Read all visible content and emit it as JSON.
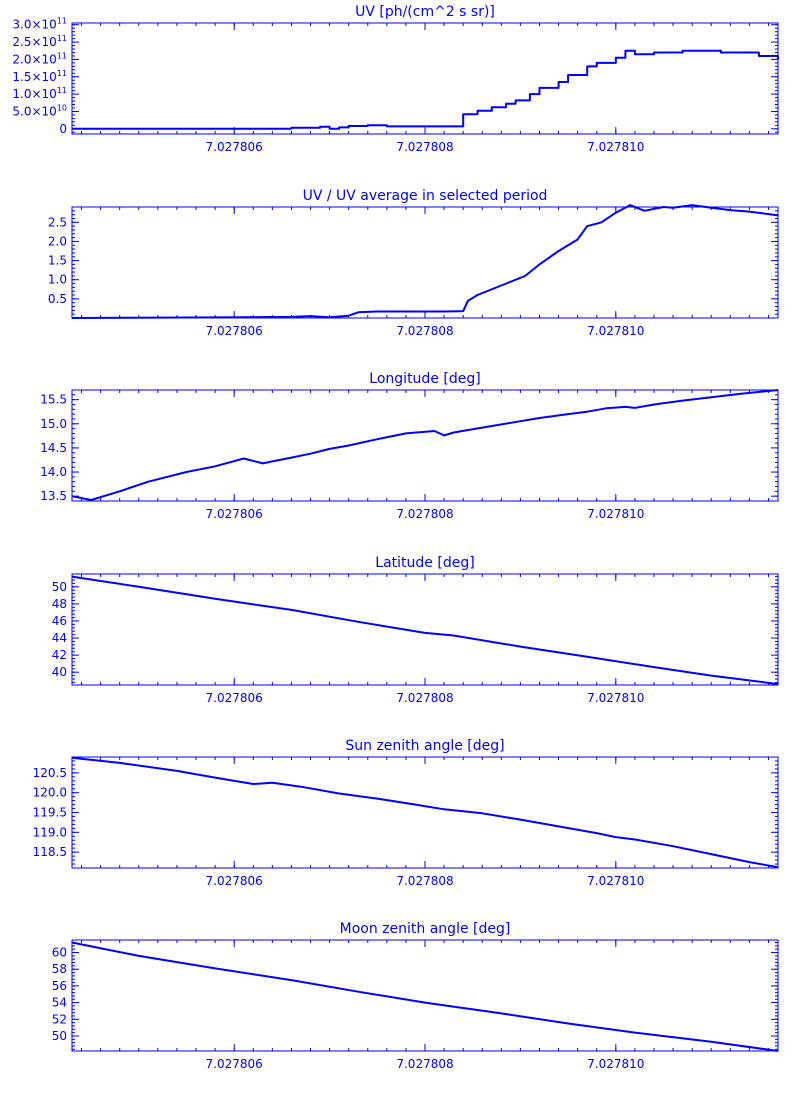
{
  "accent_color": "#0000ff",
  "chart_data": [
    {
      "type": "line",
      "step": true,
      "title": "UV [ph/(cm^2 s sr)]",
      "xlabel": "",
      "ylabel": "",
      "xlim": [
        7.0278043,
        7.0278117
      ],
      "ylim": [
        -15000000000.0,
        305000000000.0
      ],
      "x_ticks": [
        7.027806,
        7.027808,
        7.02781
      ],
      "x_tick_labels": [
        "7.027806",
        "7.027808",
        "7.027810"
      ],
      "y_ticks": [
        0,
        50000000000.0,
        100000000000.0,
        150000000000.0,
        200000000000.0,
        250000000000.0,
        300000000000.0
      ],
      "y_tick_labels": [
        "0",
        "5.0×10^10",
        "1.0×10^11",
        "1.5×10^11",
        "2.0×10^11",
        "2.5×10^11",
        "3.0×10^11"
      ],
      "series": [
        {
          "x": [
            7.0278043,
            7.0278062,
            7.0278066,
            7.0278069,
            7.027807,
            7.0278071,
            7.0278072,
            7.0278074,
            7.0278076,
            7.027808,
            7.0278082,
            7.0278084,
            7.02780855,
            7.0278087,
            7.02780885,
            7.02780895,
            7.0278091,
            7.0278092,
            7.0278094,
            7.0278095,
            7.0278097,
            7.0278098,
            7.02781,
            7.0278101,
            7.0278102,
            7.0278104,
            7.0278107,
            7.0278111,
            7.0278115,
            7.0278117
          ],
          "y": [
            0,
            0,
            3000000000.0,
            6000000000.0,
            0,
            4000000000.0,
            8000000000.0,
            10000000000.0,
            7000000000.0,
            7000000000.0,
            7000000000.0,
            42000000000.0,
            52000000000.0,
            62000000000.0,
            72000000000.0,
            82000000000.0,
            100000000000.0,
            118000000000.0,
            135000000000.0,
            155000000000.0,
            180000000000.0,
            190000000000.0,
            205000000000.0,
            225000000000.0,
            215000000000.0,
            220000000000.0,
            225000000000.0,
            220000000000.0,
            210000000000.0,
            200000000000.0
          ]
        }
      ]
    },
    {
      "type": "line",
      "title": "UV / UV average in selected period",
      "xlabel": "",
      "ylabel": "",
      "xlim": [
        7.0278043,
        7.0278117
      ],
      "ylim": [
        0,
        2.9
      ],
      "x_ticks": [
        7.027806,
        7.027808,
        7.02781
      ],
      "x_tick_labels": [
        "7.027806",
        "7.027808",
        "7.027810"
      ],
      "y_ticks": [
        0.5,
        1.0,
        1.5,
        2.0,
        2.5
      ],
      "y_tick_labels": [
        "0.5",
        "1.0",
        "1.5",
        "2.0",
        "2.5"
      ],
      "series": [
        {
          "x": [
            7.0278043,
            7.0278061,
            7.0278066,
            7.0278068,
            7.027807,
            7.0278072,
            7.0278073,
            7.0278075,
            7.027808,
            7.0278082,
            7.0278084,
            7.02780845,
            7.02780855,
            7.0278088,
            7.02780905,
            7.0278092,
            7.0278094,
            7.0278096,
            7.0278097,
            7.02780985,
            7.02781,
            7.02781015,
            7.0278103,
            7.0278105,
            7.0278106,
            7.0278108,
            7.027811,
            7.0278112,
            7.0278114,
            7.0278117
          ],
          "y": [
            0,
            0.02,
            0.03,
            0.05,
            0.02,
            0.06,
            0.15,
            0.17,
            0.17,
            0.17,
            0.18,
            0.45,
            0.6,
            0.85,
            1.1,
            1.4,
            1.75,
            2.05,
            2.4,
            2.5,
            2.75,
            2.95,
            2.8,
            2.9,
            2.88,
            2.95,
            2.88,
            2.82,
            2.78,
            2.68
          ]
        }
      ]
    },
    {
      "type": "line",
      "title": "Longitude [deg]",
      "xlabel": "",
      "ylabel": "",
      "xlim": [
        7.0278043,
        7.0278117
      ],
      "ylim": [
        13.4,
        15.7
      ],
      "x_ticks": [
        7.027806,
        7.027808,
        7.02781
      ],
      "x_tick_labels": [
        "7.027806",
        "7.027808",
        "7.027810"
      ],
      "y_ticks": [
        13.5,
        14.0,
        14.5,
        15.0,
        15.5
      ],
      "y_tick_labels": [
        "13.5",
        "14.0",
        "14.5",
        "15.0",
        "15.5"
      ],
      "series": [
        {
          "x": [
            7.0278043,
            7.0278045,
            7.0278048,
            7.0278051,
            7.0278055,
            7.0278058,
            7.0278061,
            7.0278063,
            7.0278064,
            7.0278066,
            7.0278068,
            7.027807,
            7.0278072,
            7.0278075,
            7.0278078,
            7.0278081,
            7.0278082,
            7.0278083,
            7.0278086,
            7.0278089,
            7.0278092,
            7.0278095,
            7.0278097,
            7.0278099,
            7.0278101,
            7.0278102,
            7.0278104,
            7.0278107,
            7.027811,
            7.0278113,
            7.0278117
          ],
          "y": [
            13.5,
            13.42,
            13.6,
            13.8,
            14.0,
            14.12,
            14.28,
            14.18,
            14.22,
            14.3,
            14.38,
            14.48,
            14.55,
            14.68,
            14.8,
            14.85,
            14.76,
            14.82,
            14.92,
            15.02,
            15.12,
            15.2,
            15.25,
            15.32,
            15.35,
            15.33,
            15.4,
            15.48,
            15.55,
            15.62,
            15.7
          ]
        }
      ]
    },
    {
      "type": "line",
      "title": "Latitude [deg]",
      "xlabel": "",
      "ylabel": "",
      "xlim": [
        7.0278043,
        7.0278117
      ],
      "ylim": [
        38.5,
        51.5
      ],
      "x_ticks": [
        7.027806,
        7.027808,
        7.02781
      ],
      "x_tick_labels": [
        "7.027806",
        "7.027808",
        "7.027810"
      ],
      "y_ticks": [
        40,
        42,
        44,
        46,
        48,
        50
      ],
      "y_tick_labels": [
        "40",
        "42",
        "44",
        "46",
        "48",
        "50"
      ],
      "series": [
        {
          "x": [
            7.0278043,
            7.027805,
            7.0278058,
            7.0278066,
            7.0278073,
            7.027808,
            7.0278083,
            7.027809,
            7.0278097,
            7.0278104,
            7.027811,
            7.0278115,
            7.0278117
          ],
          "y": [
            51.2,
            50.0,
            48.6,
            47.3,
            45.9,
            44.6,
            44.3,
            43.0,
            41.8,
            40.6,
            39.6,
            38.9,
            38.6
          ]
        }
      ]
    },
    {
      "type": "line",
      "title": "Sun zenith angle [deg]",
      "xlabel": "",
      "ylabel": "",
      "xlim": [
        7.0278043,
        7.0278117
      ],
      "ylim": [
        118.1,
        120.9
      ],
      "x_ticks": [
        7.027806,
        7.027808,
        7.02781
      ],
      "x_tick_labels": [
        "7.027806",
        "7.027808",
        "7.027810"
      ],
      "y_ticks": [
        118.5,
        119.0,
        119.5,
        120.0,
        120.5
      ],
      "y_tick_labels": [
        "118.5",
        "119.0",
        "119.5",
        "120.0",
        "120.5"
      ],
      "series": [
        {
          "x": [
            7.0278043,
            7.0278048,
            7.0278054,
            7.0278058,
            7.0278062,
            7.0278064,
            7.0278067,
            7.0278071,
            7.0278075,
            7.0278079,
            7.0278082,
            7.0278086,
            7.027809,
            7.0278094,
            7.0278098,
            7.02781,
            7.0278102,
            7.0278106,
            7.027811,
            7.0278114,
            7.0278117
          ],
          "y": [
            120.88,
            120.75,
            120.55,
            120.38,
            120.22,
            120.25,
            120.15,
            119.98,
            119.85,
            119.7,
            119.58,
            119.48,
            119.32,
            119.15,
            118.98,
            118.88,
            118.82,
            118.65,
            118.45,
            118.25,
            118.12
          ]
        }
      ]
    },
    {
      "type": "line",
      "title": "Moon zenith angle [deg]",
      "xlabel": "",
      "ylabel": "",
      "xlim": [
        7.0278043,
        7.0278117
      ],
      "ylim": [
        48.2,
        61.5
      ],
      "x_ticks": [
        7.027806,
        7.027808,
        7.02781
      ],
      "x_tick_labels": [
        "7.027806",
        "7.027808",
        "7.027810"
      ],
      "y_ticks": [
        50,
        52,
        54,
        56,
        58,
        60
      ],
      "y_tick_labels": [
        "50",
        "52",
        "54",
        "56",
        "58",
        "60"
      ],
      "series": [
        {
          "x": [
            7.0278043,
            7.027805,
            7.0278058,
            7.0278066,
            7.0278073,
            7.027808,
            7.0278088,
            7.0278095,
            7.0278102,
            7.027811,
            7.0278117
          ],
          "y": [
            61.2,
            59.6,
            58.1,
            56.7,
            55.3,
            54.0,
            52.7,
            51.5,
            50.4,
            49.3,
            48.2
          ]
        }
      ]
    }
  ]
}
